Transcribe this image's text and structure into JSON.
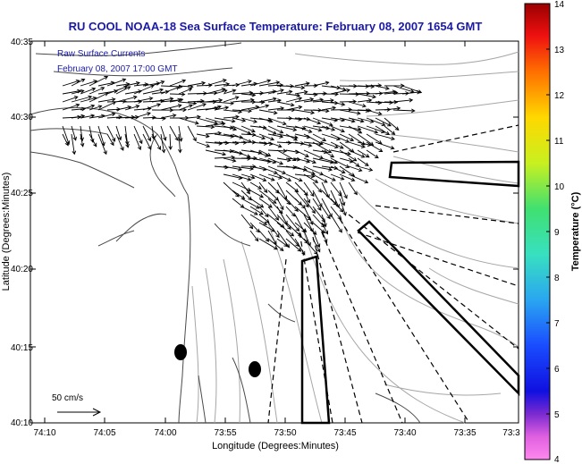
{
  "title": "RU COOL  NOAA-18  Sea Surface Temperature:  February 08, 2007 1654 GMT",
  "overlay": {
    "line1": "Raw Surface Currents",
    "line2": "February 08, 2007 17:00 GMT"
  },
  "scale_label": "50 cm/s",
  "axes": {
    "xlabel": "Longitude (Degrees:Minutes)",
    "ylabel": "Latitude (Degrees:Minutes)",
    "x_ticks": [
      "74:10",
      "74:05",
      "74:00",
      "73:55",
      "73:50",
      "73:45",
      "73:40",
      "73:35",
      "73:3"
    ],
    "y_ticks": [
      "40:35",
      "40:30",
      "40:25",
      "40:20",
      "40:15",
      "40:10"
    ]
  },
  "colorbar": {
    "label": "Temperature (°C)",
    "min": 4,
    "max": 14,
    "ticks": [
      "14",
      "13",
      "12",
      "11",
      "10",
      "9",
      "8",
      "7",
      "6",
      "5",
      "4"
    ]
  },
  "colors": {
    "title": "#1a1aa6",
    "overlay_text": "#1a1aa6",
    "land_contours": "#555555",
    "bathymetry": "#9a9a9a",
    "arrows": "#000000"
  }
}
